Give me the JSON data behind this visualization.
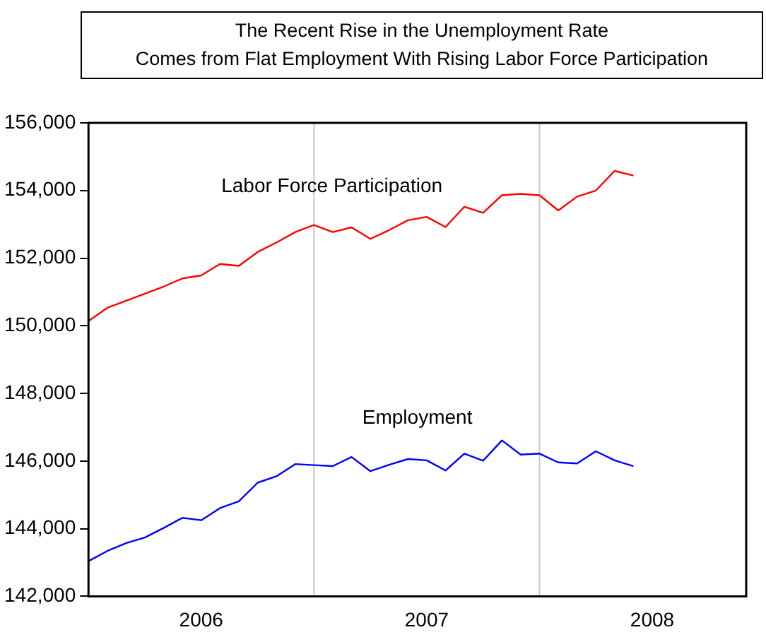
{
  "chart_data": {
    "type": "line",
    "title": "The Recent Rise in the Unemployment Rate\nComes from Flat Employment With Rising Labor Force Participation",
    "x": [
      "2006-01",
      "2006-02",
      "2006-03",
      "2006-04",
      "2006-05",
      "2006-06",
      "2006-07",
      "2006-08",
      "2006-09",
      "2006-10",
      "2006-11",
      "2006-12",
      "2007-01",
      "2007-02",
      "2007-03",
      "2007-04",
      "2007-05",
      "2007-06",
      "2007-07",
      "2007-08",
      "2007-09",
      "2007-10",
      "2007-11",
      "2007-12",
      "2008-01",
      "2008-02",
      "2008-03",
      "2008-04",
      "2008-05",
      "2008-06"
    ],
    "series": [
      {
        "name": "Labor Force Participation",
        "color": "#ff0000",
        "values": [
          150140,
          150530,
          150740,
          150950,
          151160,
          151400,
          151490,
          151830,
          151770,
          152180,
          152460,
          152770,
          152980,
          152770,
          152910,
          152570,
          152830,
          153120,
          153220,
          152920,
          153520,
          153340,
          153860,
          153900,
          153860,
          153410,
          153820,
          154000,
          154580,
          154440
        ]
      },
      {
        "name": "Employment",
        "color": "#0000ff",
        "values": [
          143040,
          143340,
          143570,
          143740,
          144020,
          144320,
          144250,
          144610,
          144810,
          145360,
          145550,
          145910,
          145880,
          145850,
          146120,
          145700,
          145890,
          146060,
          146020,
          145720,
          146220,
          146010,
          146610,
          146190,
          146220,
          145960,
          145930,
          146290,
          146020,
          145850
        ]
      }
    ],
    "xlim": [
      "2006-01",
      "2008-12"
    ],
    "xticks": [
      {
        "value": "2006-07",
        "label": "2006"
      },
      {
        "value": "2007-07",
        "label": "2007"
      },
      {
        "value": "2008-07",
        "label": "2008"
      }
    ],
    "ylim": [
      142000,
      156000
    ],
    "yticks": [
      {
        "value": 142000,
        "label": "142,000"
      },
      {
        "value": 144000,
        "label": "144,000"
      },
      {
        "value": 146000,
        "label": "146,000"
      },
      {
        "value": 148000,
        "label": "148,000"
      },
      {
        "value": 150000,
        "label": "150,000"
      },
      {
        "value": 152000,
        "label": "152,000"
      },
      {
        "value": 154000,
        "label": "154,000"
      },
      {
        "value": 156000,
        "label": "156,000"
      }
    ],
    "ref_lines": [
      {
        "axis": "x",
        "value": "2007-01",
        "color": "#c8c8c8"
      },
      {
        "axis": "x",
        "value": "2008-01",
        "color": "#c8c8c8"
      }
    ],
    "grid": false,
    "legend": false,
    "marker": "none",
    "line_style": "solid"
  }
}
